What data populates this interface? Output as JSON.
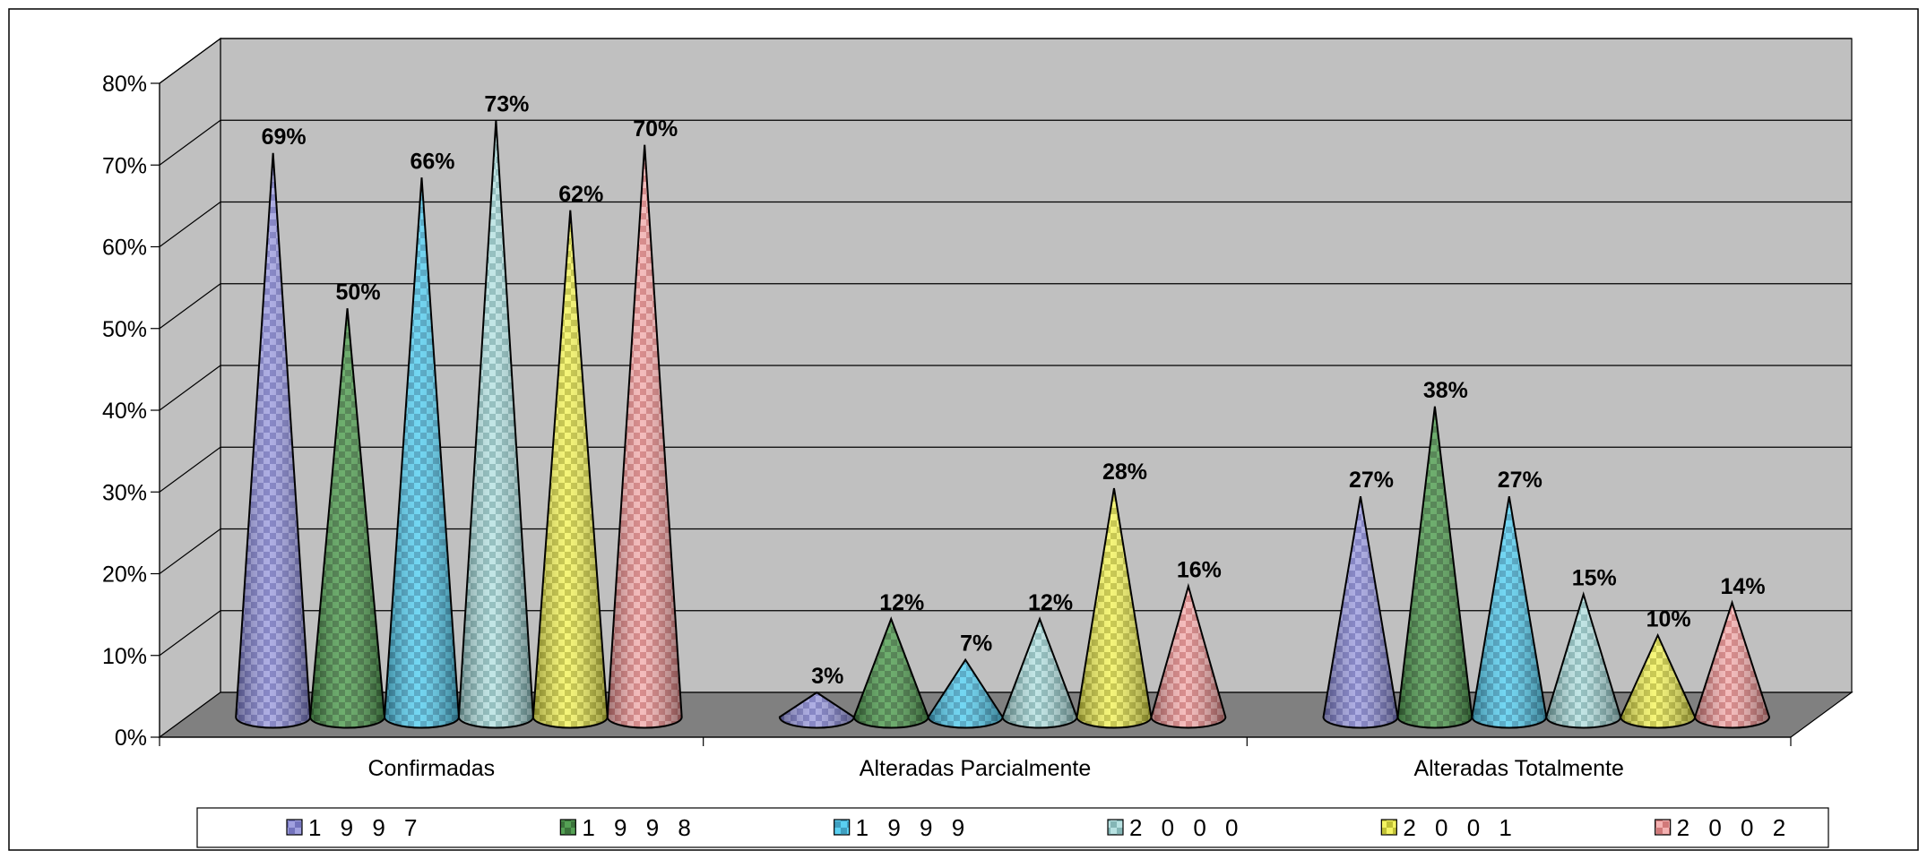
{
  "chart_data": {
    "type": "bar",
    "bar_shape": "cone-3d",
    "categories": [
      "Confirmadas",
      "Alteradas Parcialmente",
      "Alteradas Totalmente"
    ],
    "series": [
      {
        "name": "1 9 9 7",
        "values": [
          69,
          3,
          27
        ],
        "labels": [
          "69%",
          "3%",
          "27%"
        ],
        "color": "#8b8bd8",
        "dark": "#4a4aa8"
      },
      {
        "name": "1 9 9 8",
        "values": [
          50,
          12,
          38
        ],
        "labels": [
          "50%",
          "12%",
          "38%"
        ],
        "color": "#2e8b2e",
        "dark": "#0b4a0b"
      },
      {
        "name": "1 9 9 9",
        "values": [
          66,
          7,
          27
        ],
        "labels": [
          "66%",
          "7%",
          "27%"
        ],
        "color": "#36c6ee",
        "dark": "#0f7fa8"
      },
      {
        "name": "2 0 0 0",
        "values": [
          73,
          12,
          15
        ],
        "labels": [
          "73%",
          "12%",
          "15%"
        ],
        "color": "#a8dcdc",
        "dark": "#5e9c9c"
      },
      {
        "name": "2 0 0 1",
        "values": [
          62,
          28,
          10
        ],
        "labels": [
          "62%",
          "28%",
          "10%"
        ],
        "color": "#f2f240",
        "dark": "#a8a800"
      },
      {
        "name": "2 0 0 2",
        "values": [
          70,
          16,
          14
        ],
        "labels": [
          "70%",
          "16%",
          "14%"
        ],
        "color": "#f0a0a0",
        "dark": "#c05050"
      }
    ],
    "yticks": [
      "0%",
      "10%",
      "20%",
      "30%",
      "40%",
      "50%",
      "60%",
      "70%",
      "80%"
    ],
    "ylim": [
      0,
      80
    ],
    "grid": true,
    "legend_position": "bottom",
    "colors": {
      "wall": "#c0c0c0",
      "floor": "#808080",
      "side_wall": "#c0c0c0"
    }
  }
}
